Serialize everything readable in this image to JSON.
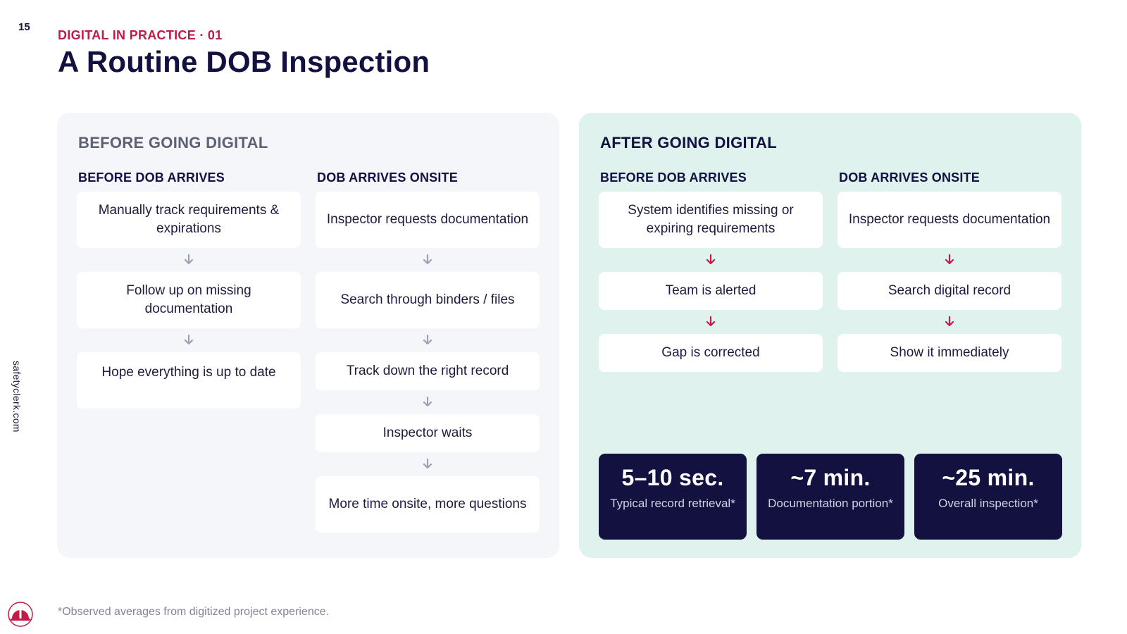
{
  "page_number": "15",
  "eyebrow": "DIGITAL IN PRACTICE · 01",
  "title": "A Routine DOB Inspection",
  "side_url": "safetyclerk.com",
  "before": {
    "heading": "BEFORE GOING DIGITAL",
    "left": {
      "heading": "BEFORE DOB ARRIVES",
      "steps": [
        "Manually track requirements & expirations",
        "Follow up on missing documentation",
        "Hope everything is up to date"
      ]
    },
    "right": {
      "heading": "DOB ARRIVES ONSITE",
      "steps": [
        "Inspector requests documentation",
        "Search through binders / files",
        "Track down the right record",
        "Inspector waits",
        "More time onsite, more questions"
      ]
    }
  },
  "after": {
    "heading": "AFTER GOING DIGITAL",
    "left": {
      "heading": "BEFORE DOB ARRIVES",
      "steps": [
        "System identifies missing or expiring requirements",
        "Team is alerted",
        "Gap is corrected"
      ]
    },
    "right": {
      "heading": "DOB ARRIVES ONSITE",
      "steps": [
        "Inspector requests documentation",
        "Search digital record",
        "Show it immediately"
      ]
    },
    "stats": [
      {
        "value": "5–10 sec.",
        "label": "Typical record retrieval*"
      },
      {
        "value": "~7 min.",
        "label": "Documentation portion*"
      },
      {
        "value": "~25 min.",
        "label": "Overall inspection*"
      }
    ]
  },
  "footnote": "*Observed averages from digitized project experience.",
  "colors": {
    "accent": "#c41a47",
    "navy": "#12113f",
    "before_panel": "#f4f6fa",
    "after_panel": "#dff2ee"
  },
  "icons": {
    "arrow": "arrow-down-icon",
    "logo": "hard-hat-icon"
  }
}
